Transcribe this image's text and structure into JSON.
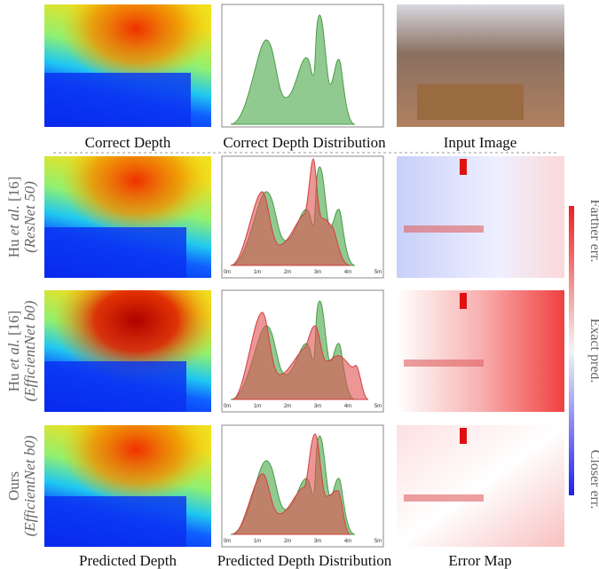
{
  "top_labels": [
    "Correct Depth",
    "Correct Depth Distribution",
    "Input Image"
  ],
  "rows": [
    {
      "method": [
        "Hu ",
        "et al.",
        " [16]"
      ],
      "backbone": "(ResNet 50)"
    },
    {
      "method": [
        "Hu ",
        "et al.",
        " [16]"
      ],
      "backbone": "(EfficientNet b0)"
    },
    {
      "method": [
        "Ours"
      ],
      "backbone": "(EfficientNet b0)"
    }
  ],
  "axis_ticks": [
    "0m",
    "1m",
    "2m",
    "3m",
    "4m",
    "5m"
  ],
  "bottom_labels": [
    "Predicted Depth",
    "Predicted Depth Distribution",
    "Error Map"
  ],
  "colorbar_labels": [
    "Farther err.",
    "Exact pred.",
    "Closer err."
  ]
}
